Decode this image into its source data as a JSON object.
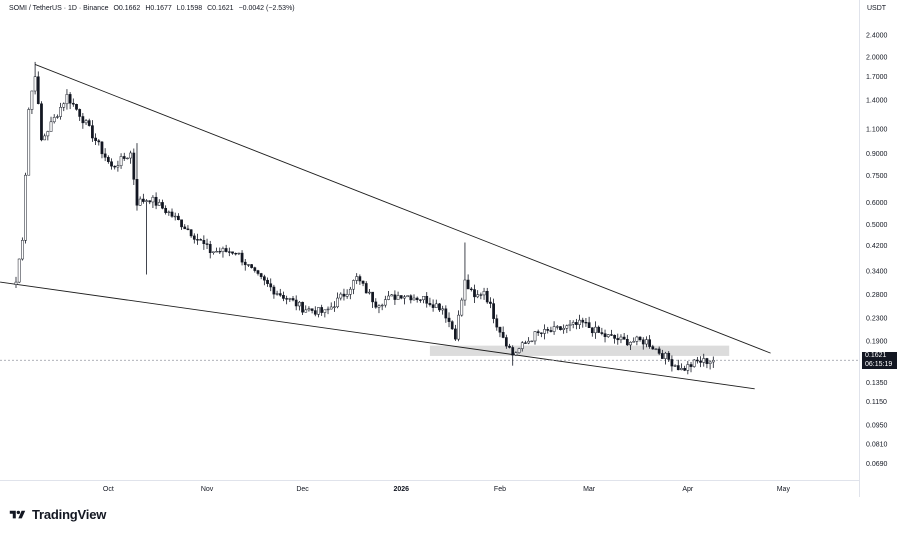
{
  "header": {
    "symbol": "SOMI / TetherUS · 1D · Binance",
    "open": "O0.1662",
    "high": "H0.1677",
    "low": "L0.1598",
    "close": "C0.1621",
    "change": "−0.0042 (−2.53%)"
  },
  "currency": "USDT",
  "price_tag": {
    "price": "0.1621",
    "countdown": "06:15:19"
  },
  "brand": "TradingView",
  "colors": {
    "up": "#ffffff",
    "down": "#131722",
    "outline": "#131722",
    "zone": "#d6d6d6",
    "trendline": "#1f1f1f"
  },
  "chart_data": {
    "type": "candlestick",
    "y_scale": "log",
    "y_ticks": [
      "2.4000",
      "2.0000",
      "1.7000",
      "1.4000",
      "1.1000",
      "0.9000",
      "0.7500",
      "0.6000",
      "0.5000",
      "0.4200",
      "0.3400",
      "0.2800",
      "0.2300",
      "0.1900",
      "0.1350",
      "0.1150",
      "0.0950",
      "0.0810",
      "0.0690"
    ],
    "x_ticks": [
      "Oct",
      "Nov",
      "Dec",
      "2026",
      "Feb",
      "Mar",
      "Apr",
      "May"
    ],
    "x_range": [
      "2025-09-02",
      "2026-05-10"
    ],
    "last_close": 0.1621,
    "trendlines": [
      {
        "name": "upper",
        "from": [
          "2025-09-08",
          1.88
        ],
        "to": [
          "2026-04-27",
          0.172
        ]
      },
      {
        "name": "lower",
        "from": [
          "2025-08-28",
          0.31
        ],
        "to": [
          "2026-04-22",
          0.128
        ]
      }
    ],
    "zones": [
      {
        "from": "2026-01-10",
        "to": "2026-04-14",
        "low": 0.168,
        "high": 0.183
      }
    ],
    "price_line": 0.1621,
    "anchors": [
      [
        "2025-09-02",
        0.31
      ],
      [
        "2025-09-04",
        0.45
      ],
      [
        "2025-09-06",
        1.3
      ],
      [
        "2025-09-08",
        1.75
      ],
      [
        "2025-09-10",
        1.0
      ],
      [
        "2025-09-14",
        1.2
      ],
      [
        "2025-09-18",
        1.45
      ],
      [
        "2025-09-22",
        1.25
      ],
      [
        "2025-09-26",
        1.05
      ],
      [
        "2025-10-02",
        0.8
      ],
      [
        "2025-10-08",
        0.9
      ],
      [
        "2025-10-10",
        0.6
      ],
      [
        "2025-10-14",
        0.62
      ],
      [
        "2025-10-20",
        0.55
      ],
      [
        "2025-10-26",
        0.48
      ],
      [
        "2025-11-02",
        0.4
      ],
      [
        "2025-11-10",
        0.4
      ],
      [
        "2025-11-16",
        0.33
      ],
      [
        "2025-11-22",
        0.29
      ],
      [
        "2025-12-01",
        0.25
      ],
      [
        "2025-12-08",
        0.24
      ],
      [
        "2025-12-14",
        0.28
      ],
      [
        "2025-12-18",
        0.32
      ],
      [
        "2025-12-24",
        0.26
      ],
      [
        "2026-01-01",
        0.28
      ],
      [
        "2026-01-08",
        0.27
      ],
      [
        "2026-01-14",
        0.25
      ],
      [
        "2026-01-18",
        0.2
      ],
      [
        "2026-01-21",
        0.31
      ],
      [
        "2026-01-24",
        0.27
      ],
      [
        "2026-01-27",
        0.29
      ],
      [
        "2026-01-31",
        0.22
      ],
      [
        "2026-02-05",
        0.17
      ],
      [
        "2026-02-12",
        0.2
      ],
      [
        "2026-02-20",
        0.21
      ],
      [
        "2026-02-27",
        0.22
      ],
      [
        "2026-03-05",
        0.2
      ],
      [
        "2026-03-12",
        0.19
      ],
      [
        "2026-03-19",
        0.19
      ],
      [
        "2026-03-24",
        0.17
      ],
      [
        "2026-03-30",
        0.15
      ],
      [
        "2026-04-04",
        0.16
      ],
      [
        "2026-04-09",
        0.162
      ]
    ]
  }
}
